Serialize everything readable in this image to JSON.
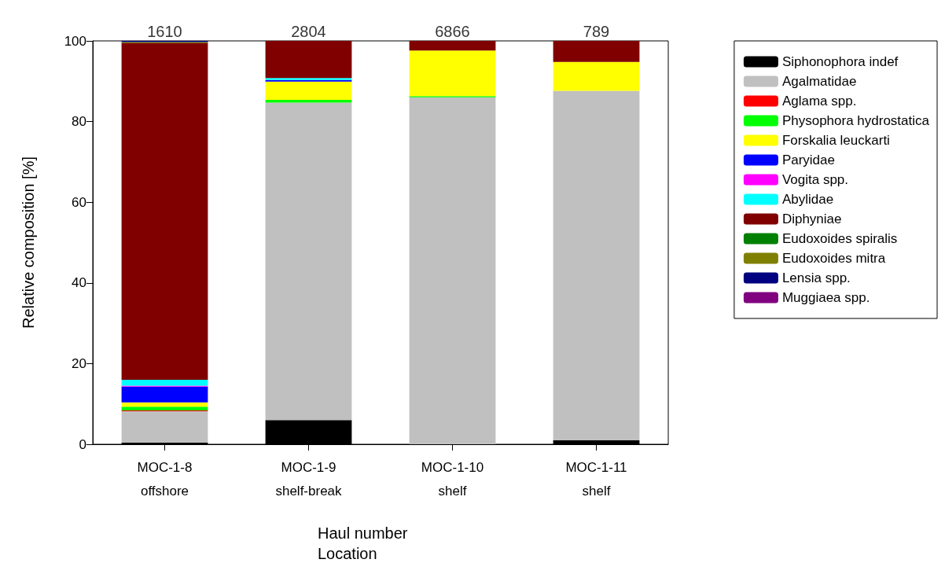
{
  "chart_data": {
    "type": "bar",
    "stacked": true,
    "ylabel": "Relative composition [%]",
    "xlabel": "Haul number\nLocation",
    "categories": [
      "MOC-1-8\noffshore",
      "MOC-1-9\nshelf-break",
      "MOC-1-10\nshelf",
      "MOC-1-11\nshelf"
    ],
    "ylim": [
      0,
      100
    ],
    "yticks": [
      0,
      20,
      40,
      60,
      80,
      100
    ],
    "grid": false,
    "legend": "right",
    "annotations": [
      {
        "text": "1610",
        "x": "MOC-1-8\noffshore",
        "y": 100
      },
      {
        "text": "2804",
        "x": "MOC-1-9\nshelf-break",
        "y": 100
      },
      {
        "text": "6866",
        "x": "MOC-1-10\nshelf",
        "y": 100
      },
      {
        "text": "789",
        "x": "MOC-1-11\nshelf",
        "y": 100
      }
    ],
    "series": [
      {
        "name": "Siphonophora indef",
        "color": "#000000",
        "values": [
          0.4,
          6.0,
          0,
          1.0
        ]
      },
      {
        "name": "Agalmatidae",
        "color": "#c0c0c0",
        "values": [
          7.8,
          78.7,
          86.0,
          86.6
        ]
      },
      {
        "name": "Aglama spp.",
        "color": "#ff0000",
        "values": [
          0.2,
          0,
          0,
          0
        ]
      },
      {
        "name": "Physophora hydrostatica",
        "color": "#00ff00",
        "values": [
          0.9,
          0.7,
          0.3,
          0
        ]
      },
      {
        "name": "Forskalia leuckarti",
        "color": "#ffff00",
        "values": [
          1.1,
          4.5,
          11.3,
          7.2
        ]
      },
      {
        "name": "Paryidae",
        "color": "#0000ff",
        "values": [
          3.9,
          0.4,
          0,
          0
        ]
      },
      {
        "name": "Vogita spp.",
        "color": "#ff00ff",
        "values": [
          0.2,
          0,
          0,
          0
        ]
      },
      {
        "name": "Abylidae",
        "color": "#00ffff",
        "values": [
          1.5,
          0.5,
          0,
          0
        ]
      },
      {
        "name": "Diphyniae",
        "color": "#800000",
        "values": [
          83.4,
          9.2,
          2.4,
          5.2
        ]
      },
      {
        "name": "Eudoxoides spiralis",
        "color": "#008000",
        "values": [
          0,
          0,
          0,
          0
        ]
      },
      {
        "name": "Eudoxoides mitra",
        "color": "#808000",
        "values": [
          0.3,
          0,
          0,
          0
        ]
      },
      {
        "name": "Lensia spp.",
        "color": "#000080",
        "values": [
          0.3,
          0,
          0,
          0
        ]
      },
      {
        "name": "Muggiaea spp.",
        "color": "#800080",
        "values": [
          0,
          0,
          0,
          0
        ]
      }
    ]
  }
}
